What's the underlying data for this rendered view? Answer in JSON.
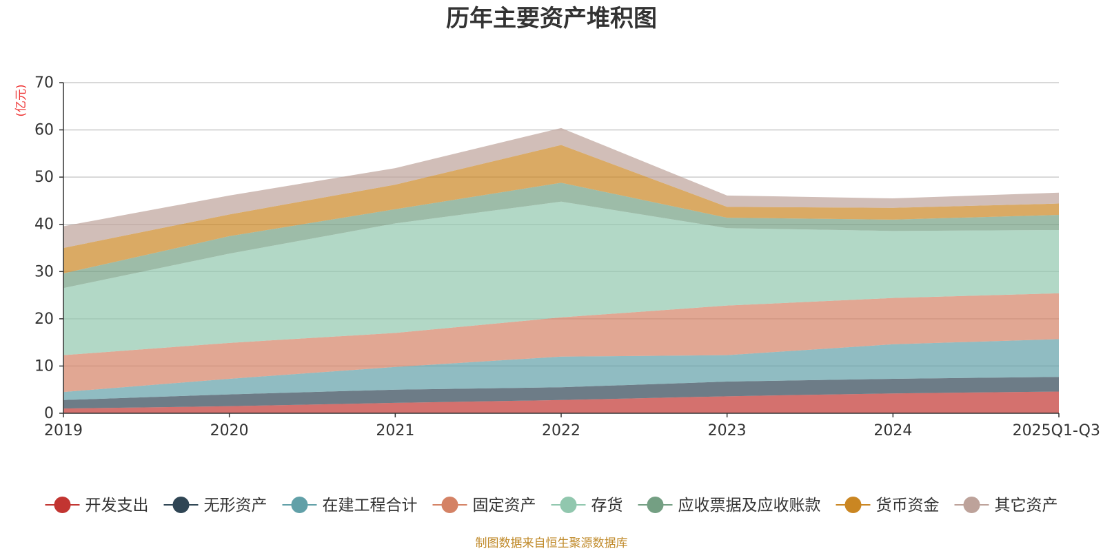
{
  "chart_data": {
    "type": "area",
    "stacked": true,
    "title": "历年主要资产堆积图",
    "ylabel": "(亿元)",
    "ylabel_color": "#ee3333",
    "xlabel": "",
    "categories": [
      "2019",
      "2020",
      "2021",
      "2022",
      "2023",
      "2024",
      "2025Q1-Q3"
    ],
    "ylim": [
      0,
      70
    ],
    "yticks": [
      0,
      10,
      20,
      30,
      40,
      50,
      60,
      70
    ],
    "grid": true,
    "legend_position": "bottom",
    "series": [
      {
        "name": "开发支出",
        "color": "#c23531",
        "values": [
          1.0,
          1.5,
          2.2,
          2.8,
          3.6,
          4.2,
          4.6
        ]
      },
      {
        "name": "无形资产",
        "color": "#2f4554",
        "values": [
          1.8,
          2.5,
          2.8,
          2.7,
          3.1,
          3.1,
          3.1
        ]
      },
      {
        "name": "在建工程合计",
        "color": "#61a0a8",
        "values": [
          1.7,
          3.3,
          4.8,
          6.5,
          5.6,
          7.3,
          8.0
        ]
      },
      {
        "name": "固定资产",
        "color": "#d48265",
        "values": [
          7.8,
          7.6,
          7.2,
          8.3,
          10.5,
          9.8,
          9.7
        ]
      },
      {
        "name": "存货",
        "color": "#91c7ae",
        "values": [
          14.2,
          18.9,
          23.2,
          24.5,
          16.4,
          14.2,
          13.4
        ]
      },
      {
        "name": "应收票据及应收账款",
        "color": "#749f83",
        "values": [
          3.1,
          3.7,
          3.0,
          4.0,
          2.2,
          2.4,
          3.2
        ]
      },
      {
        "name": "货币资金",
        "color": "#ca8622",
        "values": [
          5.4,
          4.6,
          5.2,
          8.0,
          2.3,
          2.5,
          2.4
        ]
      },
      {
        "name": "其它资产",
        "color": "#bda29a",
        "values": [
          4.6,
          4.0,
          3.5,
          3.6,
          2.4,
          2.0,
          2.3
        ]
      }
    ]
  },
  "footer": {
    "source": "制图数据来自恒生聚源数据库",
    "source_color": "#c08a2a"
  }
}
